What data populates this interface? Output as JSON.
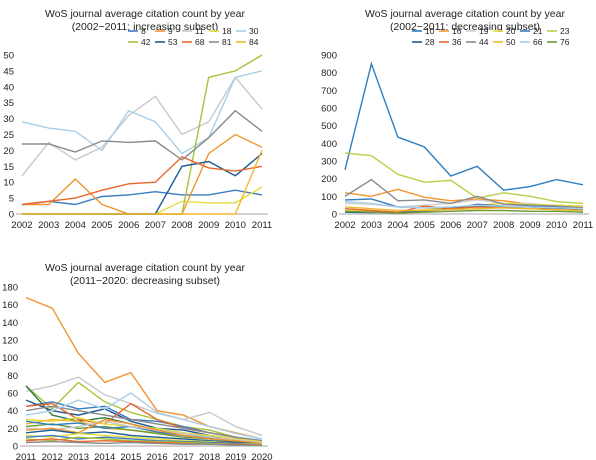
{
  "chart_data": [
    {
      "type": "line",
      "title_line1": "WoS journal average citation count by year",
      "title_line2": "(2002−2011: increasing subset)",
      "x": [
        2002,
        2003,
        2004,
        2005,
        2006,
        2007,
        2008,
        2009,
        2010,
        2011
      ],
      "ylim": [
        0,
        50
      ],
      "yticks": [
        0,
        5,
        10,
        15,
        20,
        25,
        30,
        35,
        40,
        45,
        50
      ],
      "legend_position": "top-right",
      "series": [
        {
          "name": "8",
          "color": "#3b7dc4",
          "values": [
            3,
            4,
            3,
            5.5,
            6,
            7,
            6,
            6,
            7.5,
            6
          ]
        },
        {
          "name": "9",
          "color": "#f0952f",
          "values": [
            3,
            3,
            11,
            3,
            0,
            0,
            0,
            19,
            25,
            21
          ]
        },
        {
          "name": "11",
          "color": "#c8c8c8",
          "values": [
            12,
            22.5,
            17,
            21,
            31,
            37,
            25,
            29,
            43,
            33
          ]
        },
        {
          "name": "18",
          "color": "#e5dc3a",
          "values": [
            0,
            0,
            0,
            0,
            0,
            0,
            4,
            3.5,
            3.5,
            8.5
          ]
        },
        {
          "name": "30",
          "color": "#a9cfe8",
          "values": [
            29,
            27,
            26,
            20,
            32.5,
            29,
            19,
            24,
            43,
            45
          ]
        },
        {
          "name": "42",
          "color": "#a9c23a",
          "values": [
            0,
            0,
            0,
            0,
            0,
            0,
            0,
            43,
            45,
            50
          ]
        },
        {
          "name": "53",
          "color": "#1f5a96",
          "values": [
            0,
            0,
            0,
            0,
            0,
            0,
            15,
            16.5,
            12,
            19
          ]
        },
        {
          "name": "68",
          "color": "#e8672c",
          "values": [
            3,
            4,
            5,
            7.5,
            9.5,
            10,
            18,
            14.5,
            13.5,
            15
          ]
        },
        {
          "name": "81",
          "color": "#8a8a8a",
          "values": [
            22,
            22,
            19.5,
            23,
            22.5,
            23,
            17,
            24,
            32.5,
            26
          ]
        },
        {
          "name": "84",
          "color": "#f3b72a",
          "values": [
            0,
            0,
            0,
            0,
            0,
            0,
            0,
            0,
            0,
            20
          ]
        }
      ]
    },
    {
      "type": "line",
      "title_line1": "WoS journal average citation count by year",
      "title_line2": "(2002−2011: decreasing subset)",
      "x": [
        2002,
        2003,
        2004,
        2005,
        2006,
        2007,
        2008,
        2009,
        2010,
        2011
      ],
      "ylim": [
        0,
        900
      ],
      "yticks": [
        0,
        100,
        200,
        300,
        400,
        500,
        600,
        700,
        800,
        900
      ],
      "legend_position": "top-right",
      "series": [
        {
          "name": "10",
          "color": "#2f7fc0",
          "values": [
            250,
            850,
            435,
            380,
            215,
            270,
            135,
            155,
            195,
            165
          ]
        },
        {
          "name": "16",
          "color": "#f0952f",
          "values": [
            120,
            100,
            140,
            95,
            75,
            85,
            75,
            55,
            45,
            40
          ]
        },
        {
          "name": "19",
          "color": "#d0d0d0",
          "values": [
            60,
            55,
            40,
            50,
            60,
            80,
            60,
            60,
            45,
            45
          ]
        },
        {
          "name": "20",
          "color": "#e5dc3a",
          "values": [
            20,
            15,
            10,
            25,
            30,
            50,
            60,
            55,
            50,
            45
          ]
        },
        {
          "name": "21",
          "color": "#3b7dc4",
          "values": [
            80,
            85,
            40,
            35,
            35,
            45,
            40,
            45,
            40,
            35
          ]
        },
        {
          "name": "23",
          "color": "#b8cf48",
          "values": [
            345,
            330,
            225,
            180,
            190,
            90,
            120,
            100,
            70,
            60
          ]
        },
        {
          "name": "28",
          "color": "#1f5a96",
          "values": [
            10,
            8,
            10,
            15,
            30,
            55,
            45,
            40,
            30,
            25
          ]
        },
        {
          "name": "36",
          "color": "#e8672c",
          "values": [
            30,
            20,
            10,
            45,
            30,
            40,
            35,
            30,
            25,
            20
          ]
        },
        {
          "name": "44",
          "color": "#8a8a8a",
          "values": [
            100,
            195,
            75,
            80,
            60,
            100,
            55,
            50,
            45,
            35
          ]
        },
        {
          "name": "50",
          "color": "#f3b72a",
          "values": [
            40,
            30,
            20,
            20,
            25,
            30,
            35,
            30,
            25,
            20
          ]
        },
        {
          "name": "66",
          "color": "#a9cfe8",
          "values": [
            70,
            60,
            40,
            35,
            40,
            50,
            45,
            40,
            35,
            30
          ]
        },
        {
          "name": "76",
          "color": "#6a9a3a",
          "values": [
            15,
            10,
            5,
            10,
            15,
            20,
            20,
            15,
            15,
            10
          ]
        }
      ]
    },
    {
      "type": "line",
      "title_line1": "WoS journal average citation count by year",
      "title_line2": "(2011−2020: decreasing subset)",
      "x": [
        2011,
        2012,
        2013,
        2014,
        2015,
        2016,
        2017,
        2018,
        2019,
        2020
      ],
      "ylim": [
        0,
        180
      ],
      "yticks": [
        0,
        20,
        40,
        60,
        80,
        100,
        120,
        140,
        160,
        180
      ],
      "legend_position": "none",
      "series": [
        {
          "color": "#f0952f",
          "values": [
            168,
            156,
            105,
            72,
            83,
            40,
            35,
            22,
            15,
            8
          ]
        },
        {
          "color": "#c8c8c8",
          "values": [
            62,
            68,
            78,
            58,
            48,
            37,
            30,
            38,
            22,
            12
          ]
        },
        {
          "color": "#a9c23a",
          "values": [
            68,
            42,
            72,
            50,
            38,
            30,
            22,
            18,
            10,
            5
          ]
        },
        {
          "color": "#3b7dc4",
          "values": [
            45,
            50,
            42,
            45,
            30,
            28,
            22,
            15,
            10,
            6
          ]
        },
        {
          "color": "#2a7a4a",
          "values": [
            68,
            35,
            28,
            32,
            25,
            18,
            15,
            10,
            8,
            4
          ]
        },
        {
          "color": "#1f5a96",
          "values": [
            52,
            40,
            35,
            42,
            28,
            20,
            18,
            12,
            8,
            5
          ]
        },
        {
          "color": "#e8672c",
          "values": [
            45,
            48,
            30,
            25,
            48,
            30,
            20,
            15,
            10,
            5
          ]
        },
        {
          "color": "#8a8a8a",
          "values": [
            40,
            45,
            40,
            35,
            30,
            25,
            20,
            15,
            10,
            5
          ]
        },
        {
          "color": "#a9cfe8",
          "values": [
            35,
            40,
            52,
            42,
            60,
            38,
            30,
            22,
            14,
            8
          ]
        },
        {
          "color": "#e5dc3a",
          "values": [
            30,
            28,
            32,
            25,
            22,
            20,
            15,
            12,
            8,
            5
          ]
        },
        {
          "color": "#f3b72a",
          "values": [
            25,
            30,
            28,
            20,
            18,
            15,
            12,
            8,
            6,
            3
          ]
        },
        {
          "color": "#6a9a3a",
          "values": [
            22,
            25,
            20,
            22,
            18,
            14,
            10,
            8,
            5,
            3
          ]
        },
        {
          "color": "#2f7fc0",
          "values": [
            28,
            24,
            26,
            20,
            22,
            16,
            12,
            9,
            6,
            4
          ]
        },
        {
          "color": "#c8c8c8",
          "values": [
            20,
            18,
            22,
            28,
            22,
            18,
            14,
            10,
            7,
            4
          ]
        },
        {
          "color": "#f0952f",
          "values": [
            18,
            20,
            15,
            30,
            25,
            18,
            12,
            8,
            6,
            3
          ]
        },
        {
          "color": "#1f5a96",
          "values": [
            15,
            18,
            14,
            16,
            12,
            10,
            8,
            6,
            4,
            2
          ]
        },
        {
          "color": "#e5dc3a",
          "values": [
            12,
            10,
            14,
            12,
            10,
            8,
            6,
            5,
            3,
            2
          ]
        },
        {
          "color": "#3b7dc4",
          "values": [
            10,
            12,
            8,
            10,
            8,
            6,
            5,
            4,
            3,
            1
          ]
        },
        {
          "color": "#a9c23a",
          "values": [
            8,
            6,
            10,
            8,
            6,
            5,
            4,
            3,
            2,
            1
          ]
        },
        {
          "color": "#e8672c",
          "values": [
            6,
            8,
            5,
            6,
            5,
            4,
            3,
            2,
            2,
            1
          ]
        },
        {
          "color": "#8a8a8a",
          "values": [
            4,
            5,
            4,
            3,
            4,
            3,
            2,
            2,
            1,
            1
          ]
        }
      ]
    }
  ]
}
